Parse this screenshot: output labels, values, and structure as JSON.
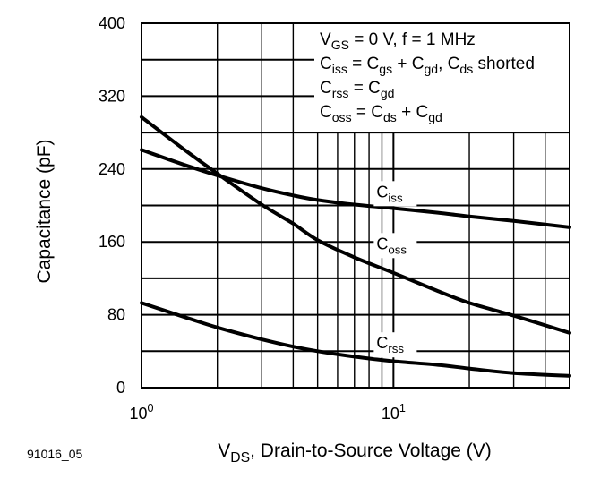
{
  "figure_id": "91016_05",
  "chart_data": {
    "type": "line",
    "x_scale": "log",
    "xlim": [
      1,
      50
    ],
    "ylim": [
      0,
      400
    ],
    "grid": true,
    "xlabel": {
      "main": "V",
      "sub": "DS",
      "rest": ", Drain-to-Source Voltage (V)"
    },
    "ylabel": "Capacitance (pF)",
    "x_ticks": [
      {
        "value": 1,
        "base": "10",
        "exp": "0"
      },
      {
        "value": 10,
        "base": "10",
        "exp": "1"
      }
    ],
    "y_ticks": [
      "0",
      "80",
      "160",
      "240",
      "320",
      "400"
    ],
    "annotations": [
      [
        {
          "t": "V"
        },
        {
          "t": "GS",
          "sub": true
        },
        {
          "t": " = 0 V, f = 1 MHz"
        }
      ],
      [
        {
          "t": "C"
        },
        {
          "t": "iss",
          "sub": true
        },
        {
          "t": " = C"
        },
        {
          "t": "gs",
          "sub": true
        },
        {
          "t": " + C"
        },
        {
          "t": "gd",
          "sub": true
        },
        {
          "t": ", C"
        },
        {
          "t": "ds",
          "sub": true
        },
        {
          "t": " shorted"
        }
      ],
      [
        {
          "t": "C"
        },
        {
          "t": "rss",
          "sub": true
        },
        {
          "t": " = C"
        },
        {
          "t": "gd",
          "sub": true
        }
      ],
      [
        {
          "t": "C"
        },
        {
          "t": "oss",
          "sub": true
        },
        {
          "t": " = C"
        },
        {
          "t": "ds",
          "sub": true
        },
        {
          "t": " + C"
        },
        {
          "t": "gd",
          "sub": true
        }
      ]
    ],
    "series": [
      {
        "main": "C",
        "sub": "iss",
        "label_at": {
          "x": 10,
          "y": 211
        },
        "x": [
          1,
          1.5,
          2,
          3,
          4,
          5,
          7,
          10,
          15,
          20,
          30,
          50
        ],
        "values": [
          261,
          244,
          233,
          219,
          211,
          206,
          201,
          197,
          192,
          188,
          183,
          176
        ]
      },
      {
        "main": "C",
        "sub": "oss",
        "label_at": {
          "x": 10,
          "y": 154
        },
        "x": [
          1,
          1.5,
          2,
          3,
          4,
          5,
          7,
          10,
          15,
          20,
          30,
          50
        ],
        "values": [
          297,
          260,
          235,
          201,
          180,
          162,
          143,
          126,
          106,
          93,
          79,
          60
        ]
      },
      {
        "main": "C",
        "sub": "rss",
        "label_at": {
          "x": 10,
          "y": 45
        },
        "x": [
          1,
          1.5,
          2,
          3,
          4,
          5,
          7,
          10,
          15,
          20,
          30,
          50
        ],
        "values": [
          93,
          77,
          66,
          53,
          45,
          40,
          34,
          29,
          25,
          21,
          16,
          13
        ]
      }
    ],
    "colors": {
      "line": "#000000",
      "grid": "#000000",
      "background": "#ffffff"
    }
  }
}
